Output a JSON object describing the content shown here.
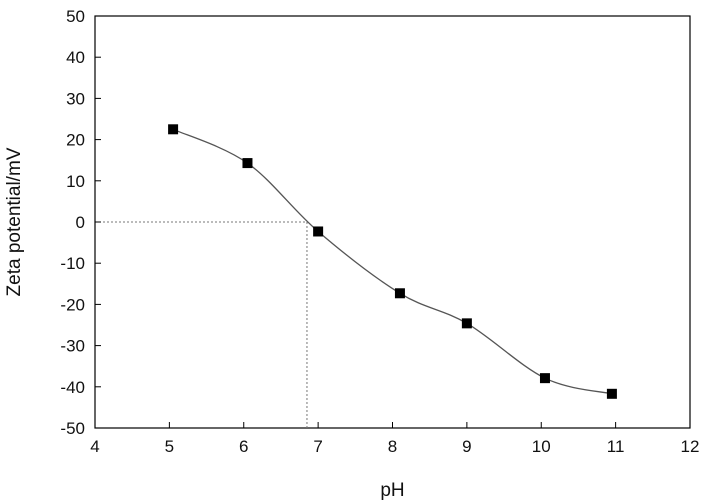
{
  "chart_data": {
    "type": "scatter",
    "xlabel": "pH",
    "ylabel": "Zeta potential/mV",
    "xlim": [
      4,
      12
    ],
    "ylim": [
      -50,
      50
    ],
    "x_ticks": [
      4,
      5,
      6,
      7,
      8,
      9,
      10,
      11,
      12
    ],
    "y_ticks": [
      -50,
      -40,
      -30,
      -20,
      -10,
      0,
      10,
      20,
      30,
      40,
      50
    ],
    "x_tick_labels": [
      "4",
      "5",
      "6",
      "7",
      "8",
      "9",
      "10",
      "11",
      "12"
    ],
    "y_tick_labels": [
      "-50",
      "-40",
      "-30",
      "-20",
      "-10",
      "0",
      "10",
      "20",
      "30",
      "40",
      "50"
    ],
    "grid": false,
    "series": [
      {
        "x": [
          5.05,
          6.05,
          7.0,
          8.1,
          9.0,
          10.05,
          10.95
        ],
        "y": [
          22.5,
          14.3,
          -2.3,
          -17.3,
          -24.6,
          -37.9,
          -41.7
        ],
        "marker": "square",
        "line": "smooth",
        "color": "#000000",
        "line_color": "#555555"
      }
    ],
    "isoelectric_point": {
      "x": 6.85,
      "y": 0
    },
    "colors": {
      "reference_line": "#777777",
      "axis": "#000000"
    }
  }
}
